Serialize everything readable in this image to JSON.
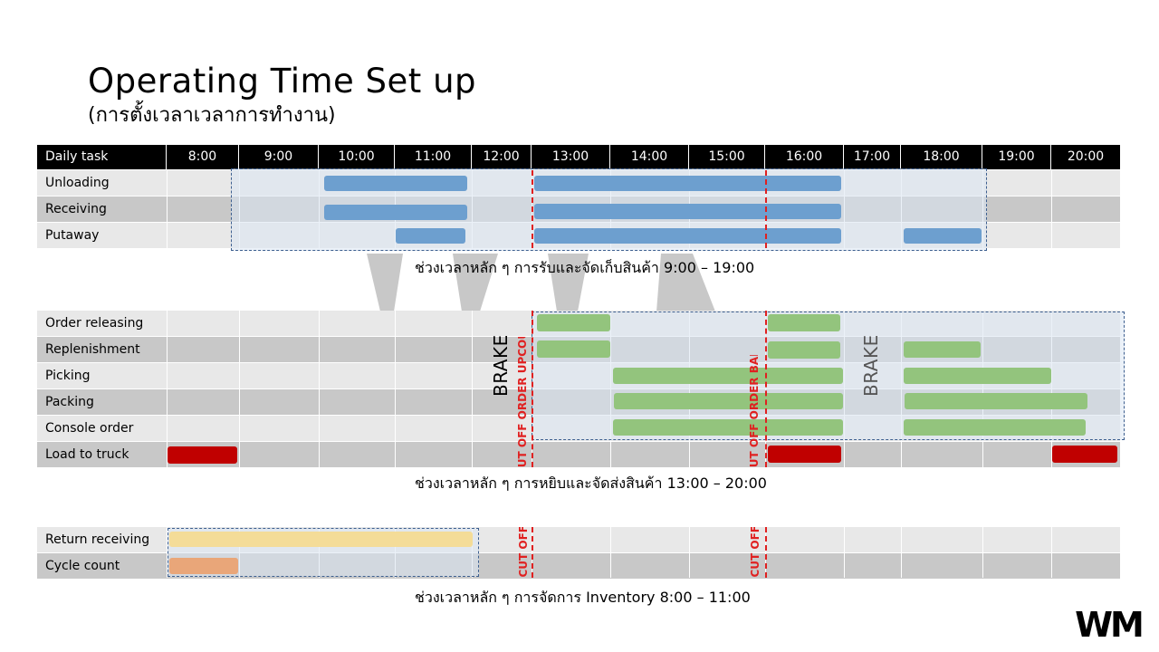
{
  "title": "Operating Time Set up",
  "subtitle": "(การตั้งเวลาเวลาการทำงาน)",
  "header": {
    "task_label": "Daily task",
    "hours": [
      "8:00",
      "9:00",
      "10:00",
      "11:00",
      "12:00",
      "13:00",
      "14:00",
      "15:00",
      "16:00",
      "17:00",
      "18:00",
      "19:00",
      "20:00"
    ]
  },
  "section1": {
    "rows": [
      "Unloading",
      "Receiving",
      "Putaway"
    ],
    "caption": "ช่วงเวลาหลัก ๆ การรับและจัดเก็บสินค้า 9:00 – 19:00"
  },
  "section2": {
    "rows": [
      "Order releasing",
      "Replenishment",
      "Picking",
      "Packing",
      "Console order",
      "Load to truck"
    ],
    "caption": "ช่วงเวลาหลัก ๆ การหยิบและจัดส่งสินค้า 13:00 – 20:00",
    "brake_label": "BRAKE",
    "cutoff_upcountry": "CUT OFF ORDER UPCOUNTRY",
    "cutoff_bangkok": "CUT OFF ORDER BANGKOK"
  },
  "section3": {
    "rows": [
      "Return receiving",
      "Cycle count"
    ],
    "caption": "ช่วงเวลาหลัก ๆ การจัดการ Inventory 8:00 – 11:00",
    "cutoff_label": "CUT OFF"
  },
  "colors": {
    "header_bg": "#000000",
    "row_light": "#e8e8e8",
    "row_dark": "#c8c8c8",
    "inbound_bar": "#6d9fcf",
    "outbound_bar": "#93c47d",
    "truck_bar": "#c00000",
    "return_bar": "#f4dc98",
    "cycle_bar": "#e9a679",
    "cutoff_line": "#e02020",
    "zone_border": "#3d5f8f"
  },
  "logo": "WM"
}
